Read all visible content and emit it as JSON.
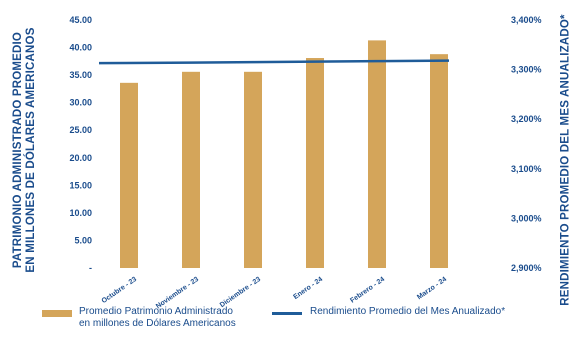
{
  "chart_data": {
    "type": "bar",
    "categories": [
      "Octubre - 23",
      "Noviembre - 23",
      "Diciembre - 23",
      "Enero - 24",
      "Febrero - 24",
      "Marzo - 24"
    ],
    "series": [
      {
        "name": "Promedio Patrimonio Administrado en millones de Dólares Americanos",
        "type": "bar",
        "axis": "left",
        "values": [
          33.6,
          35.6,
          35.6,
          38.1,
          41.3,
          38.8
        ]
      },
      {
        "name": "Rendimiento Promedio del Mes Anualizado*",
        "type": "line",
        "axis": "right",
        "values": [
          3.313,
          3.314,
          3.315,
          3.316,
          3.317,
          3.318
        ]
      }
    ],
    "left_axis": {
      "label": "PATRIMONIO ADMINISTRADO PROMEDIO EN MILLONES DE DÓLARES AMERICANOS",
      "label_line1": "PATRIMONIO ADMINISTRADO PROMEDIO",
      "label_line2": "EN MILLONES DE DÓLARES AMERICANOS",
      "ylim": [
        0,
        45
      ],
      "ticks": [
        0,
        5,
        10,
        15,
        20,
        25,
        30,
        35,
        40,
        45
      ],
      "tick_labels": [
        "-",
        "5.00",
        "10.00",
        "15.00",
        "20.00",
        "25.00",
        "30.00",
        "35.00",
        "40.00",
        "45.00"
      ]
    },
    "right_axis": {
      "label": "RENDIMIENTO PROMEDIO DEL MES ANUALIZADO*",
      "ylim": [
        2.9,
        3.4
      ],
      "ticks": [
        2.9,
        3.0,
        3.1,
        3.2,
        3.3,
        3.4
      ],
      "tick_labels": [
        "2,900%",
        "3,000%",
        "3,100%",
        "3,200%",
        "3,300%",
        "3,400%"
      ]
    },
    "legend": {
      "position": "bottom",
      "bar_label_line1": "Promedio Patrimonio Administrado",
      "bar_label_line2": "en millones de Dólares Americanos",
      "line_label": "Rendimiento Promedio del Mes Anualizado*"
    },
    "grid": false,
    "colors": {
      "bar": "#d4a55a",
      "line": "#1f5c99",
      "text": "#1a4c8c"
    }
  }
}
